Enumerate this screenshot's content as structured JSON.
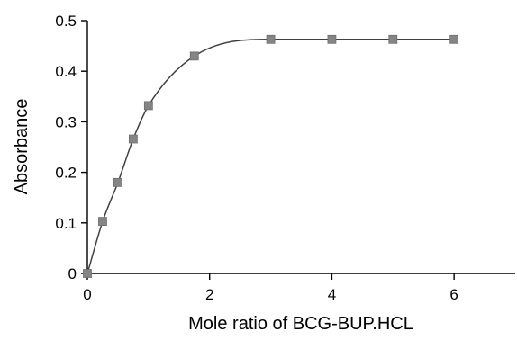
{
  "chart_data": {
    "type": "scatter",
    "title": "",
    "xlabel": "Mole ratio of BCG-BUP.HCL",
    "ylabel": "Absorbance",
    "xlim": [
      0,
      7
    ],
    "ylim": [
      0,
      0.5
    ],
    "xticks": [
      0,
      2,
      4,
      6
    ],
    "yticks": [
      0,
      0.1,
      0.2,
      0.3,
      0.4,
      0.5
    ],
    "xtick_labels": [
      "0",
      "2",
      "4",
      "6"
    ],
    "ytick_labels": [
      "0",
      "0.1",
      "0.2",
      "0.3",
      "0.4",
      "0.5"
    ],
    "grid": false,
    "legend": "none",
    "marker_color": "#858585",
    "line_color": "#404040",
    "series": [
      {
        "x": [
          0,
          0.25,
          0.5,
          0.75,
          1.0,
          1.75,
          3.0,
          4.0,
          5.0,
          6.0
        ],
        "y": [
          0,
          0.103,
          0.18,
          0.266,
          0.332,
          0.43,
          0.463,
          0.463,
          0.463,
          0.463
        ],
        "smooth_curve": true
      }
    ]
  }
}
